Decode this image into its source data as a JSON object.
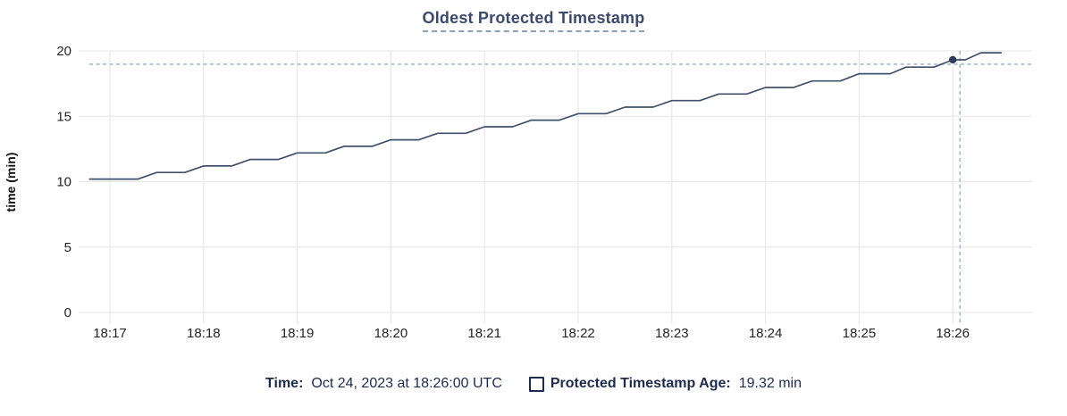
{
  "title": "Oldest Protected Timestamp",
  "colors": {
    "title_text": "#3c4a6e",
    "title_underline": "#8aa0b8",
    "line": "#41506b",
    "dot": "#2a3a58",
    "crosshair": "#a5bccd",
    "grid": "#e9e9e9",
    "tick_text": "#232323",
    "legend_text": "#1d2b4e"
  },
  "legend": {
    "time_label": "Time:",
    "time_value": "Oct 24, 2023 at 18:26:00 UTC",
    "series_label": "Protected Timestamp Age:",
    "series_value": "19.32 min",
    "series_checkbox_checked": false
  },
  "chart_data": {
    "type": "line",
    "title": "Oldest Protected Timestamp",
    "xlabel": "",
    "ylabel": "time (min)",
    "ylim": [
      0,
      20
    ],
    "y_ticks": [
      0,
      5,
      10,
      15,
      20
    ],
    "x_tick_labels": [
      "18:17",
      "18:18",
      "18:19",
      "18:20",
      "18:21",
      "18:22",
      "18:23",
      "18:24",
      "18:25",
      "18:26"
    ],
    "x_range": [
      "18:16:47",
      "18:26:50"
    ],
    "grid": true,
    "legend_position": "bottom",
    "series": [
      {
        "name": "Protected Timestamp Age",
        "unit": "min",
        "points": [
          [
            "18:16:47",
            10.2
          ],
          [
            "18:17:18",
            10.2
          ],
          [
            "18:17:30",
            10.7
          ],
          [
            "18:17:48",
            10.7
          ],
          [
            "18:18:00",
            11.2
          ],
          [
            "18:18:18",
            11.2
          ],
          [
            "18:18:30",
            11.7
          ],
          [
            "18:18:48",
            11.7
          ],
          [
            "18:19:00",
            12.2
          ],
          [
            "18:19:18",
            12.2
          ],
          [
            "18:19:30",
            12.7
          ],
          [
            "18:19:48",
            12.7
          ],
          [
            "18:20:00",
            13.2
          ],
          [
            "18:20:18",
            13.2
          ],
          [
            "18:20:30",
            13.7
          ],
          [
            "18:20:48",
            13.7
          ],
          [
            "18:21:00",
            14.2
          ],
          [
            "18:21:18",
            14.2
          ],
          [
            "18:21:30",
            14.7
          ],
          [
            "18:21:48",
            14.7
          ],
          [
            "18:22:00",
            15.2
          ],
          [
            "18:22:18",
            15.2
          ],
          [
            "18:22:30",
            15.7
          ],
          [
            "18:22:48",
            15.7
          ],
          [
            "18:23:00",
            16.2
          ],
          [
            "18:23:18",
            16.2
          ],
          [
            "18:23:30",
            16.7
          ],
          [
            "18:23:48",
            16.7
          ],
          [
            "18:24:00",
            17.2
          ],
          [
            "18:24:18",
            17.2
          ],
          [
            "18:24:30",
            17.7
          ],
          [
            "18:24:48",
            17.7
          ],
          [
            "18:25:00",
            18.25
          ],
          [
            "18:25:20",
            18.25
          ],
          [
            "18:25:30",
            18.76
          ],
          [
            "18:25:48",
            18.76
          ],
          [
            "18:26:00",
            19.32
          ],
          [
            "18:26:08",
            19.32
          ],
          [
            "18:26:18",
            19.86
          ],
          [
            "18:26:31",
            19.86
          ]
        ]
      }
    ],
    "highlight_point": {
      "x": "18:26:00",
      "y": 19.32
    }
  }
}
